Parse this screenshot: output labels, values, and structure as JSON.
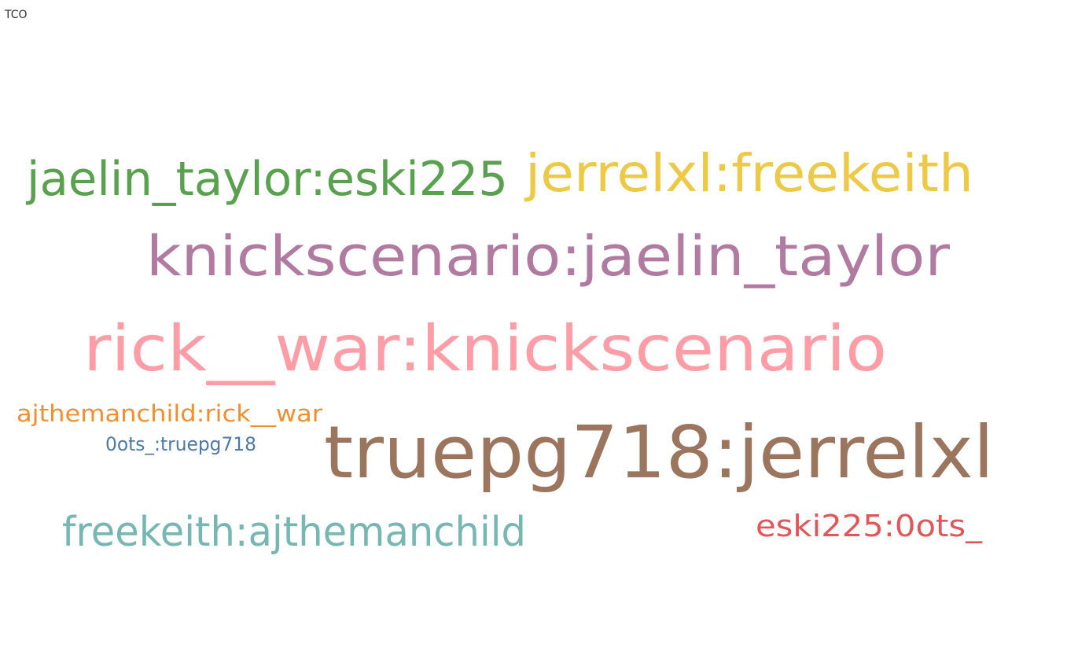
{
  "title": "TCO",
  "chart_data": {
    "type": "wordcloud",
    "words": [
      {
        "text": "truepg718:jerrelxl",
        "weight": 10,
        "color": "#9c755f"
      },
      {
        "text": "rick__war:knickscenario",
        "weight": 9,
        "color": "#ff9da7"
      },
      {
        "text": "knickscenario:jaelin_taylor",
        "weight": 8,
        "color": "#b07aa1"
      },
      {
        "text": "jerrelxl:freekeith",
        "weight": 7,
        "color": "#edc948"
      },
      {
        "text": "jaelin_taylor:eski225",
        "weight": 6,
        "color": "#59a14f"
      },
      {
        "text": "freekeith:ajthemanchild",
        "weight": 5,
        "color": "#76b7b2"
      },
      {
        "text": "eski225:0ots_",
        "weight": 4,
        "color": "#e15759"
      },
      {
        "text": "ajthemanchild:rick__war",
        "weight": 3,
        "color": "#f28e2b"
      },
      {
        "text": "0ots_:truepg718",
        "weight": 2,
        "color": "#4e79a7"
      }
    ]
  }
}
